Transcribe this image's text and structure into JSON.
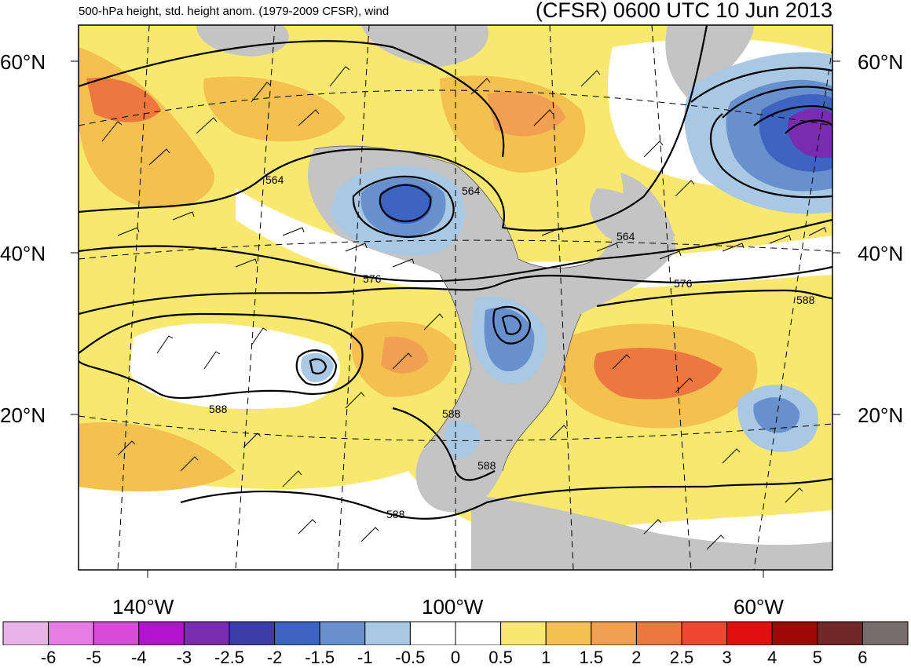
{
  "title_left": "500-hPa height, std. height anom. (1979-2009 CFSR), wind",
  "title_right": "(CFSR) 0600 UTC 10 Jun 2013",
  "lat_labels": [
    "60°N",
    "40°N",
    "20°N"
  ],
  "lon_labels": [
    "140°W",
    "100°W",
    "60°W"
  ],
  "contour_labels": [
    "564",
    "564",
    "564",
    "576",
    "576",
    "588",
    "588",
    "588",
    "588",
    "588"
  ],
  "colorbar": {
    "ticks": [
      "-6",
      "-5",
      "-4",
      "-3",
      "-2.5",
      "-2",
      "-1.5",
      "-1",
      "-0.5",
      "0",
      "0.5",
      "1",
      "1.5",
      "2",
      "2.5",
      "3",
      "4",
      "5",
      "6"
    ],
    "colors": [
      "#e8b4e8",
      "#e47ee4",
      "#d84ad8",
      "#b414d0",
      "#7a2cb0",
      "#3c3ca8",
      "#3c64c0",
      "#6890cc",
      "#a8c8e4",
      "#ffffff",
      "#ffffff",
      "#f8e870",
      "#f4c050",
      "#f0a050",
      "#ec7840",
      "#f04830",
      "#e01010",
      "#a00808",
      "#702828",
      "#786c6c"
    ]
  },
  "colors": {
    "land": "#c4c4c4",
    "yellow": "#f8e870",
    "lightorange": "#f4c050",
    "orange": "#f0a050",
    "darkorange": "#ec7840",
    "lightblue": "#a8c8e4",
    "midblue": "#6890cc",
    "blue": "#3c64c0",
    "darkblue": "#3c3ca8",
    "purple": "#7a2cb0"
  }
}
